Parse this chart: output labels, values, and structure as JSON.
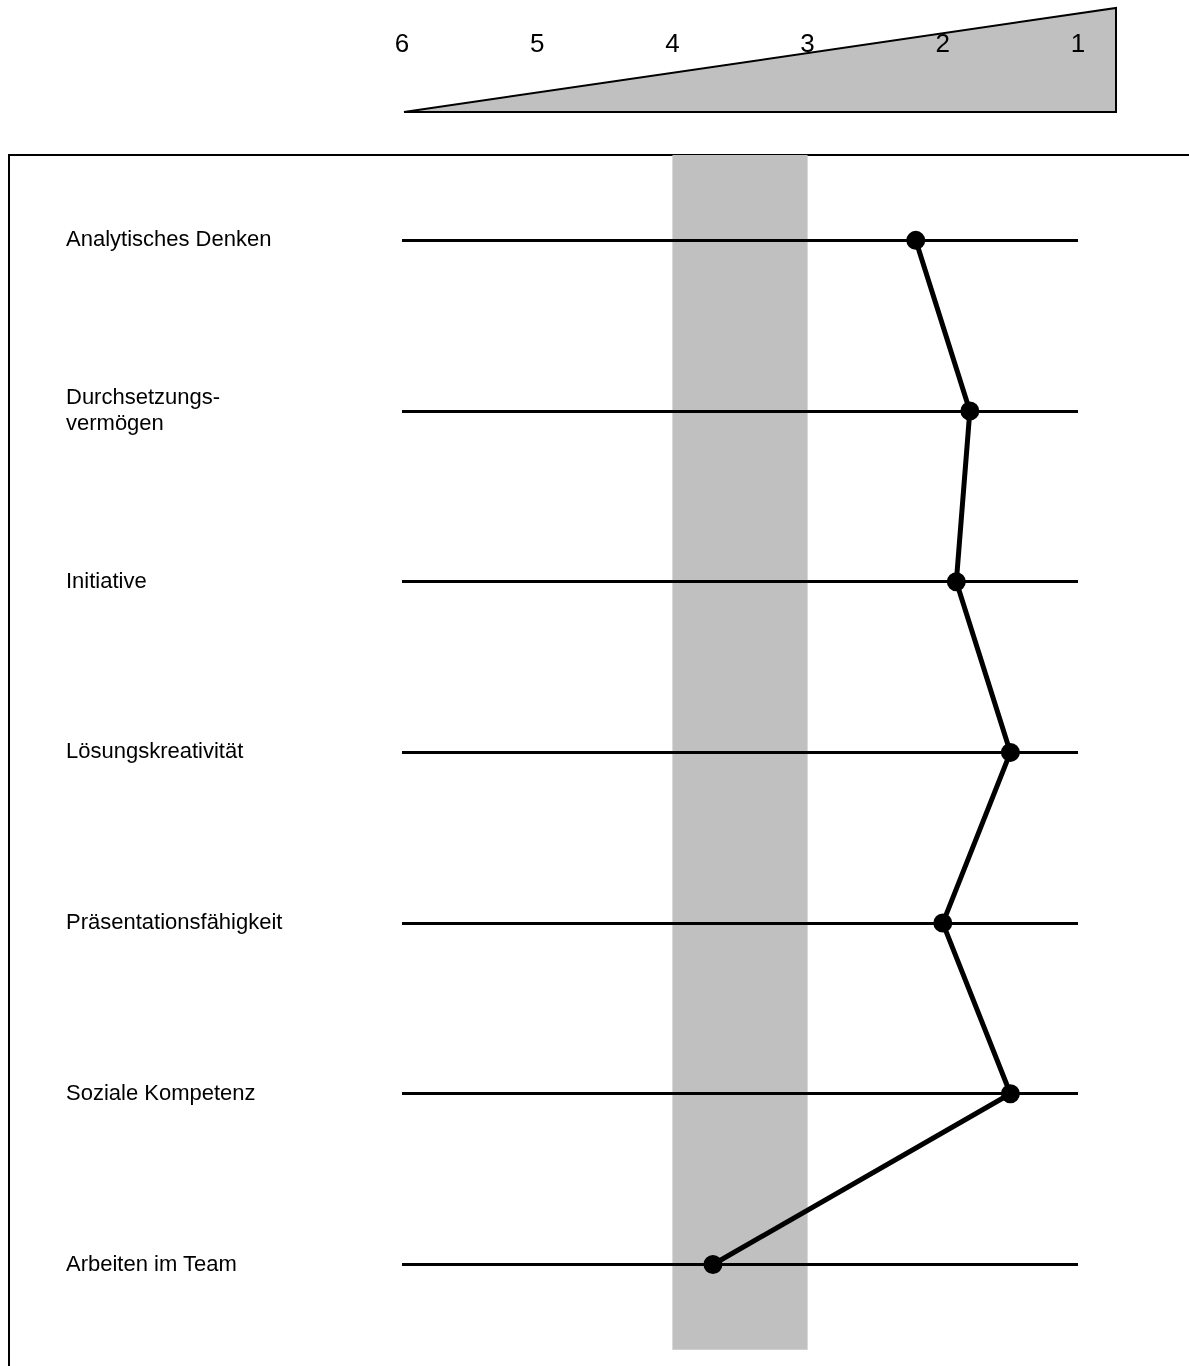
{
  "chart_data": {
    "type": "line",
    "orientation": "horizontal",
    "categories": [
      "Analytisches Denken",
      "Durchsetzungs-\nvermögen",
      "Initiative",
      "Lösungskreativität",
      "Präsentationsfähigkeit",
      "Soziale Kompetenz",
      "Arbeiten im Team"
    ],
    "series": [
      {
        "color": "#000000",
        "values": [
          2.2,
          1.8,
          1.9,
          1.5,
          2.0,
          1.5,
          3.7
        ]
      }
    ],
    "xlim": [
      6,
      1
    ],
    "xticks": [
      6,
      5,
      4,
      3,
      2,
      1
    ],
    "bands": [
      {
        "axis": "x",
        "from": 4,
        "to": 3,
        "color": "#c0c0c0"
      }
    ],
    "grid": "y",
    "legend": false,
    "marker": "circle",
    "line_style": "solid"
  }
}
